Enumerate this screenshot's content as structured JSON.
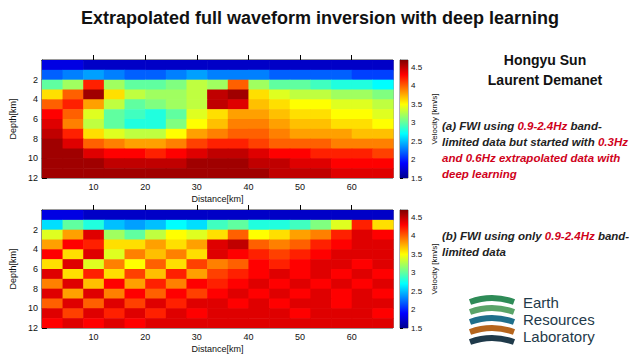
{
  "slide": {
    "title": "Extrapolated full waveform inversion with deep learning",
    "authors": [
      "Hongyu Sun",
      "Laurent Demanet"
    ],
    "captions": [
      [
        {
          "text": "(a) FWI using ",
          "color": "#222222"
        },
        {
          "text": "0.9-2.4Hz",
          "color": "#d0021b"
        },
        {
          "text": " band-limited data but started with ",
          "color": "#222222"
        },
        {
          "text": "0.3Hz and 0.6Hz extrapolated data with deep learning",
          "color": "#d0021b"
        }
      ],
      [
        {
          "text": "(b) FWI using only ",
          "color": "#222222"
        },
        {
          "text": "0.9-2.4Hz",
          "color": "#d0021b"
        },
        {
          "text": " band-limited data",
          "color": "#222222"
        }
      ]
    ],
    "logo": [
      "Earth",
      "Resources",
      "Laboratory"
    ]
  },
  "chart_data": [
    {
      "type": "heatmap",
      "xlabel": "Distance[km]",
      "ylabel": "Depth[km]",
      "x_edges": [
        0,
        4,
        8,
        12,
        16,
        20,
        24,
        28,
        32,
        36,
        40,
        44,
        48,
        52,
        56,
        60,
        64,
        68
      ],
      "y_edges": [
        0,
        1,
        2,
        3,
        4,
        5,
        6,
        7,
        8,
        9,
        10,
        11,
        12
      ],
      "xlim": [
        0,
        68
      ],
      "xticks": [
        10,
        20,
        30,
        40,
        50,
        60
      ],
      "ylim": [
        0,
        12
      ],
      "yticks": [
        2,
        4,
        6,
        8,
        10,
        12
      ],
      "cells": [
        [
          1.8,
          1.8,
          1.7,
          1.7,
          1.7,
          1.7,
          1.7,
          1.7,
          1.7,
          1.7,
          1.7,
          1.7,
          1.7,
          1.7,
          1.7,
          1.7,
          1.7
        ],
        [
          2.2,
          2.3,
          2.4,
          2.3,
          2.2,
          2.2,
          2.3,
          2.4,
          2.3,
          2.3,
          2.3,
          2.2,
          2.2,
          2.2,
          2.2,
          2.1,
          2.1
        ],
        [
          3.0,
          3.2,
          4.2,
          3.2,
          3.0,
          3.0,
          3.1,
          3.3,
          3.2,
          4.0,
          3.2,
          3.0,
          3.0,
          2.9,
          2.8,
          2.8,
          2.7
        ],
        [
          3.6,
          4.0,
          4.6,
          3.6,
          3.3,
          3.2,
          3.2,
          3.3,
          4.5,
          4.6,
          3.6,
          3.4,
          3.3,
          3.3,
          3.2,
          3.2,
          3.1
        ],
        [
          4.0,
          4.2,
          3.8,
          3.3,
          3.0,
          3.1,
          3.2,
          3.3,
          4.5,
          4.4,
          3.7,
          3.6,
          3.5,
          3.5,
          3.4,
          3.4,
          3.3
        ],
        [
          4.3,
          4.0,
          3.4,
          3.0,
          2.9,
          2.8,
          3.0,
          3.4,
          3.6,
          3.8,
          3.8,
          3.7,
          3.6,
          3.6,
          3.5,
          3.5,
          3.4
        ],
        [
          4.4,
          3.9,
          3.3,
          3.0,
          2.8,
          2.8,
          3.1,
          3.5,
          3.7,
          3.9,
          3.9,
          3.8,
          3.7,
          3.7,
          3.6,
          3.6,
          3.5
        ],
        [
          4.5,
          4.2,
          3.6,
          3.4,
          3.3,
          3.3,
          3.5,
          3.8,
          3.9,
          4.0,
          4.0,
          3.9,
          3.8,
          3.8,
          3.8,
          3.7,
          3.7
        ],
        [
          4.6,
          4.4,
          4.0,
          3.9,
          3.8,
          3.8,
          3.9,
          4.1,
          4.2,
          4.2,
          4.1,
          4.0,
          4.0,
          4.0,
          3.9,
          3.9,
          3.9
        ],
        [
          4.6,
          4.6,
          4.4,
          4.3,
          4.3,
          4.2,
          4.3,
          4.4,
          4.5,
          4.5,
          4.4,
          4.3,
          4.3,
          4.2,
          4.2,
          4.2,
          4.1
        ],
        [
          4.6,
          4.6,
          4.6,
          4.5,
          4.5,
          4.5,
          4.5,
          4.6,
          4.6,
          4.6,
          4.5,
          4.5,
          4.4,
          4.4,
          4.3,
          4.3,
          4.3
        ],
        [
          4.6,
          4.6,
          4.6,
          4.6,
          4.6,
          4.6,
          4.6,
          4.6,
          4.6,
          4.6,
          4.6,
          4.5,
          4.5,
          4.5,
          4.4,
          4.4,
          4.4
        ]
      ],
      "colorbar": {
        "label": "Velocity [km/s]",
        "range": [
          1.5,
          4.7
        ],
        "ticks": [
          1.5,
          2,
          2.5,
          3,
          3.5,
          4,
          4.5
        ]
      }
    },
    {
      "type": "heatmap",
      "xlabel": "Distance[km]",
      "ylabel": "Depth[km]",
      "x_edges": [
        0,
        4,
        8,
        12,
        16,
        20,
        24,
        28,
        32,
        36,
        40,
        44,
        48,
        52,
        56,
        60,
        64,
        68
      ],
      "y_edges": [
        0,
        1,
        2,
        3,
        4,
        5,
        6,
        7,
        8,
        9,
        10,
        11,
        12
      ],
      "xlim": [
        0,
        68
      ],
      "xticks": [
        10,
        20,
        30,
        40,
        50,
        60
      ],
      "ylim": [
        0,
        12
      ],
      "yticks": [
        2,
        4,
        6,
        8,
        10,
        12
      ],
      "cells": [
        [
          1.8,
          1.8,
          1.7,
          1.7,
          1.7,
          1.7,
          1.7,
          1.7,
          1.7,
          1.7,
          1.7,
          1.7,
          1.7,
          1.7,
          1.7,
          1.7,
          1.7
        ],
        [
          2.6,
          3.0,
          2.8,
          2.5,
          2.4,
          2.5,
          2.7,
          2.6,
          2.9,
          3.0,
          2.8,
          2.8,
          2.9,
          3.1,
          3.4,
          4.2,
          3.6
        ],
        [
          3.4,
          3.8,
          4.4,
          3.2,
          3.0,
          3.3,
          3.5,
          3.4,
          3.6,
          4.0,
          3.5,
          3.6,
          3.8,
          3.9,
          4.2,
          4.4,
          4.3
        ],
        [
          3.8,
          4.3,
          4.2,
          3.6,
          3.6,
          3.8,
          3.6,
          3.8,
          4.4,
          4.5,
          4.0,
          3.9,
          4.0,
          4.2,
          4.3,
          4.4,
          4.4
        ],
        [
          4.3,
          3.6,
          4.4,
          3.4,
          3.9,
          3.7,
          3.9,
          3.6,
          4.4,
          4.3,
          4.2,
          4.1,
          4.2,
          4.3,
          4.4,
          4.4,
          4.4
        ],
        [
          3.6,
          4.4,
          3.4,
          3.9,
          3.5,
          4.0,
          3.6,
          4.1,
          3.9,
          4.0,
          4.3,
          4.2,
          4.3,
          4.4,
          4.4,
          4.3,
          4.4
        ],
        [
          4.4,
          3.6,
          4.2,
          3.6,
          4.1,
          3.7,
          4.2,
          3.8,
          4.1,
          4.2,
          4.3,
          4.4,
          4.3,
          4.4,
          4.3,
          4.4,
          4.3
        ],
        [
          3.9,
          4.4,
          3.7,
          4.3,
          3.8,
          4.2,
          3.9,
          4.3,
          4.2,
          4.3,
          4.4,
          4.3,
          4.4,
          4.3,
          4.4,
          4.3,
          4.4
        ],
        [
          4.4,
          3.8,
          4.4,
          3.9,
          4.3,
          4.0,
          4.3,
          4.1,
          4.3,
          4.4,
          4.3,
          4.4,
          4.3,
          4.4,
          4.3,
          4.4,
          4.3
        ],
        [
          4.0,
          4.4,
          4.0,
          4.4,
          4.1,
          4.4,
          4.2,
          4.4,
          4.4,
          4.3,
          4.4,
          4.3,
          4.4,
          4.4,
          4.3,
          4.4,
          4.4
        ],
        [
          4.4,
          4.1,
          4.4,
          4.2,
          4.4,
          4.2,
          4.4,
          4.3,
          4.4,
          4.4,
          4.4,
          4.4,
          4.3,
          4.4,
          4.4,
          4.4,
          4.3
        ],
        [
          4.3,
          4.4,
          4.3,
          4.4,
          4.3,
          4.4,
          4.4,
          4.4,
          4.4,
          4.4,
          4.4,
          4.4,
          4.4,
          4.4,
          4.4,
          4.4,
          4.4
        ]
      ],
      "colorbar": {
        "label": "Velocity [km/s]",
        "range": [
          1.5,
          4.7
        ],
        "ticks": [
          1.5,
          2,
          2.5,
          3,
          3.5,
          4,
          4.5
        ]
      }
    }
  ]
}
